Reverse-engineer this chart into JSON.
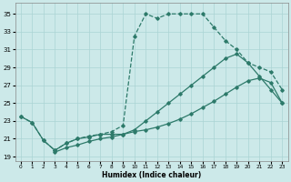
{
  "xlabel": "Humidex (Indice chaleur)",
  "xlim": [
    -0.5,
    23.5
  ],
  "ylim": [
    18.5,
    36.2
  ],
  "yticks": [
    19,
    21,
    23,
    25,
    27,
    29,
    31,
    33,
    35
  ],
  "xticks": [
    0,
    1,
    2,
    3,
    4,
    5,
    6,
    7,
    8,
    9,
    10,
    11,
    12,
    13,
    14,
    15,
    16,
    17,
    18,
    19,
    20,
    21,
    22,
    23
  ],
  "bg_color": "#cce9e9",
  "grid_color": "#aad4d4",
  "line_color": "#2d7a6a",
  "line1_x": [
    0,
    1,
    2,
    3,
    4,
    5,
    6,
    7,
    8,
    9,
    10,
    11,
    12,
    13,
    14,
    15,
    16,
    17,
    18,
    19,
    20,
    21,
    22,
    23
  ],
  "line1_y": [
    23.5,
    22.8,
    20.8,
    19.7,
    20.5,
    21.0,
    21.3,
    21.5,
    21.8,
    22.5,
    32.5,
    35.0,
    34.5,
    35.0,
    35.0,
    35.0,
    35.0,
    33.5,
    32.0,
    31.0,
    29.5,
    29.0,
    28.5,
    26.5
  ],
  "line2_x": [
    0,
    1,
    2,
    3,
    4,
    5,
    6,
    7,
    8,
    9,
    10,
    11,
    12,
    13,
    14,
    15,
    16,
    17,
    18,
    19,
    20,
    21,
    22,
    23
  ],
  "line2_y": [
    23.5,
    22.8,
    20.8,
    19.7,
    20.5,
    21.0,
    21.2,
    21.5,
    21.5,
    21.5,
    22.0,
    23.0,
    24.0,
    25.0,
    26.0,
    27.0,
    28.0,
    29.0,
    30.0,
    30.5,
    29.5,
    28.0,
    26.5,
    25.0
  ],
  "line3_x": [
    3,
    4,
    5,
    6,
    7,
    8,
    9,
    10,
    11,
    12,
    13,
    14,
    15,
    16,
    17,
    18,
    19,
    20,
    21,
    22,
    23
  ],
  "line3_y": [
    19.5,
    20.0,
    20.3,
    20.7,
    21.0,
    21.2,
    21.5,
    21.8,
    22.0,
    22.3,
    22.7,
    23.2,
    23.8,
    24.5,
    25.2,
    26.0,
    26.8,
    27.5,
    27.8,
    27.3,
    25.0
  ]
}
